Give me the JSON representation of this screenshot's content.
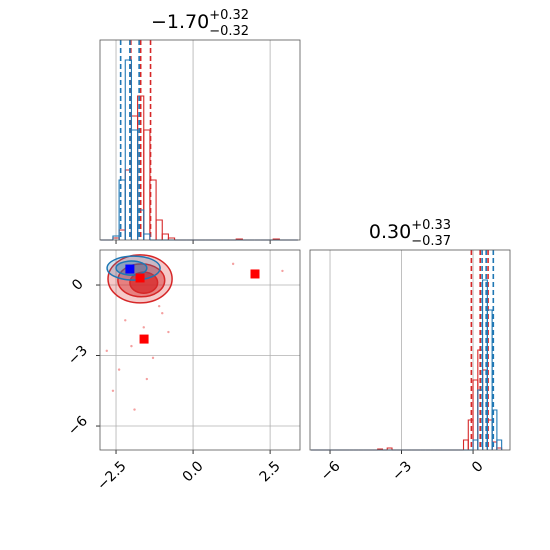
{
  "chart_data": [
    {
      "type": "histogram",
      "title": {
        "base": "−1.70",
        "plus": "+0.32",
        "minus": "−0.32"
      },
      "xlim": [
        -3.02,
        3.47
      ],
      "xticks": [
        -2.5,
        0,
        2.5
      ],
      "ylim": [
        0,
        1
      ],
      "grid": true,
      "bins": [
        -3.0,
        -2.8,
        -2.6,
        -2.4,
        -2.2,
        -2.0,
        -1.8,
        -1.6,
        -1.4,
        -1.2,
        -1.0,
        -0.8,
        -0.6,
        -0.4,
        -0.2,
        0.0,
        0.2,
        0.4,
        0.6,
        0.8,
        1.0,
        1.2,
        1.4,
        1.6,
        1.8,
        2.0,
        2.2,
        2.4,
        2.6,
        2.8,
        3.0,
        3.2,
        3.4
      ],
      "series": [
        {
          "color": "#d62728",
          "quantiles": [
            -2.02,
            -1.7,
            -1.38
          ],
          "values": [
            0,
            0,
            0.01,
            0.05,
            0.35,
            0.62,
            0.72,
            0.55,
            0.3,
            0.1,
            0.03,
            0.01,
            0,
            0,
            0,
            0,
            0,
            0,
            0,
            0,
            0,
            0,
            0.005,
            0,
            0,
            0,
            0,
            0,
            0.005,
            0,
            0,
            0
          ]
        },
        {
          "color": "#1f77b4",
          "quantiles": [
            -2.35,
            -2.05,
            -1.75
          ],
          "values": [
            0,
            0,
            0.02,
            0.3,
            0.9,
            0.55,
            0.15,
            0.03,
            0,
            0,
            0,
            0,
            0,
            0,
            0,
            0,
            0,
            0,
            0,
            0,
            0,
            0,
            0,
            0,
            0,
            0,
            0,
            0,
            0,
            0,
            0,
            0
          ]
        }
      ]
    },
    {
      "type": "scatter",
      "xlim": [
        -3.02,
        3.47
      ],
      "ylim": [
        -7.02,
        1.49
      ],
      "grid": true,
      "xticks": [
        {
          "value": -2.5,
          "label": "−2.5"
        },
        {
          "value": 0,
          "label": "0.0"
        },
        {
          "value": 2.5,
          "label": "2.5"
        }
      ],
      "yticks": [
        {
          "value": 0,
          "label": "0"
        },
        {
          "value": -3,
          "label": "−3"
        },
        {
          "value": -6,
          "label": "−6"
        }
      ],
      "samples": {
        "color": "#f4a0a0",
        "x": [
          -2.2,
          -1.3,
          -2.6,
          -1.0,
          -1.9,
          1.3,
          2.9,
          -2.8,
          -1.5,
          -0.8,
          -2.0,
          -1.6,
          -2.4,
          -1.1
        ],
        "y": [
          -1.5,
          -3.1,
          -4.5,
          -1.2,
          -5.3,
          0.9,
          0.6,
          -2.8,
          -4.0,
          -2.0,
          -2.6,
          -1.8,
          -3.6,
          -0.9
        ]
      },
      "contours": [
        {
          "color": "#d62728",
          "levels": [
            {
              "cx": -1.72,
              "cy": 0.26,
              "rx": 1.04,
              "ry": 1.02
            },
            {
              "cx": -1.68,
              "cy": 0.2,
              "rx": 0.76,
              "ry": 0.7
            },
            {
              "cx": -1.6,
              "cy": 0.1,
              "rx": 0.45,
              "ry": 0.45
            }
          ]
        },
        {
          "color": "#1f77b4",
          "levels": [
            {
              "cx": -1.93,
              "cy": 0.72,
              "rx": 0.86,
              "ry": 0.51
            },
            {
              "cx": -2.0,
              "cy": 0.72,
              "rx": 0.5,
              "ry": 0.3
            }
          ]
        }
      ],
      "markers": [
        {
          "color": "#0000ff",
          "x": [
            -2.05
          ],
          "y": [
            0.68
          ]
        },
        {
          "color": "#ff0000",
          "x": [
            -1.72,
            -1.59,
            2.01
          ],
          "y": [
            0.3,
            -2.3,
            0.47
          ]
        }
      ]
    },
    {
      "type": "histogram",
      "title": {
        "base": "0.30",
        "plus": "+0.33",
        "minus": "−0.37"
      },
      "xlim": [
        -6.84,
        1.55
      ],
      "ylim": [
        0,
        1
      ],
      "grid": true,
      "xticks": [
        {
          "value": -6,
          "label": "−6"
        },
        {
          "value": -3,
          "label": "−3"
        },
        {
          "value": 0,
          "label": "0"
        }
      ],
      "bins": [
        -6.8,
        -6.6,
        -6.4,
        -6.2,
        -6.0,
        -5.8,
        -5.6,
        -5.4,
        -5.2,
        -5.0,
        -4.8,
        -4.6,
        -4.4,
        -4.2,
        -4.0,
        -3.8,
        -3.6,
        -3.4,
        -3.2,
        -3.0,
        -2.8,
        -2.6,
        -2.4,
        -2.2,
        -2.0,
        -1.8,
        -1.6,
        -1.4,
        -1.2,
        -1.0,
        -0.8,
        -0.6,
        -0.4,
        -0.2,
        0.0,
        0.2,
        0.4,
        0.6,
        0.8,
        1.0,
        1.2
      ],
      "series": [
        {
          "color": "#d62728",
          "quantiles": [
            -0.07,
            0.3,
            0.63
          ],
          "values": [
            0,
            0,
            0,
            0,
            0,
            0,
            0,
            0,
            0,
            0,
            0,
            0,
            0,
            0,
            0.005,
            0,
            0.01,
            0,
            0,
            0,
            0,
            0,
            0,
            0,
            0,
            0,
            0,
            0,
            0,
            0,
            0,
            0,
            0.05,
            0.15,
            0.35,
            0.5,
            0.4,
            0.15,
            0.04,
            0.01
          ]
        },
        {
          "color": "#1f77b4",
          "quantiles": [
            0.38,
            0.55,
            0.85
          ],
          "values": [
            0,
            0,
            0,
            0,
            0,
            0,
            0,
            0,
            0,
            0,
            0,
            0,
            0,
            0,
            0,
            0,
            0,
            0,
            0,
            0,
            0,
            0,
            0,
            0,
            0,
            0,
            0,
            0,
            0,
            0,
            0,
            0,
            0,
            0,
            0.05,
            0.3,
            0.85,
            0.7,
            0.2,
            0.05
          ]
        }
      ]
    }
  ]
}
